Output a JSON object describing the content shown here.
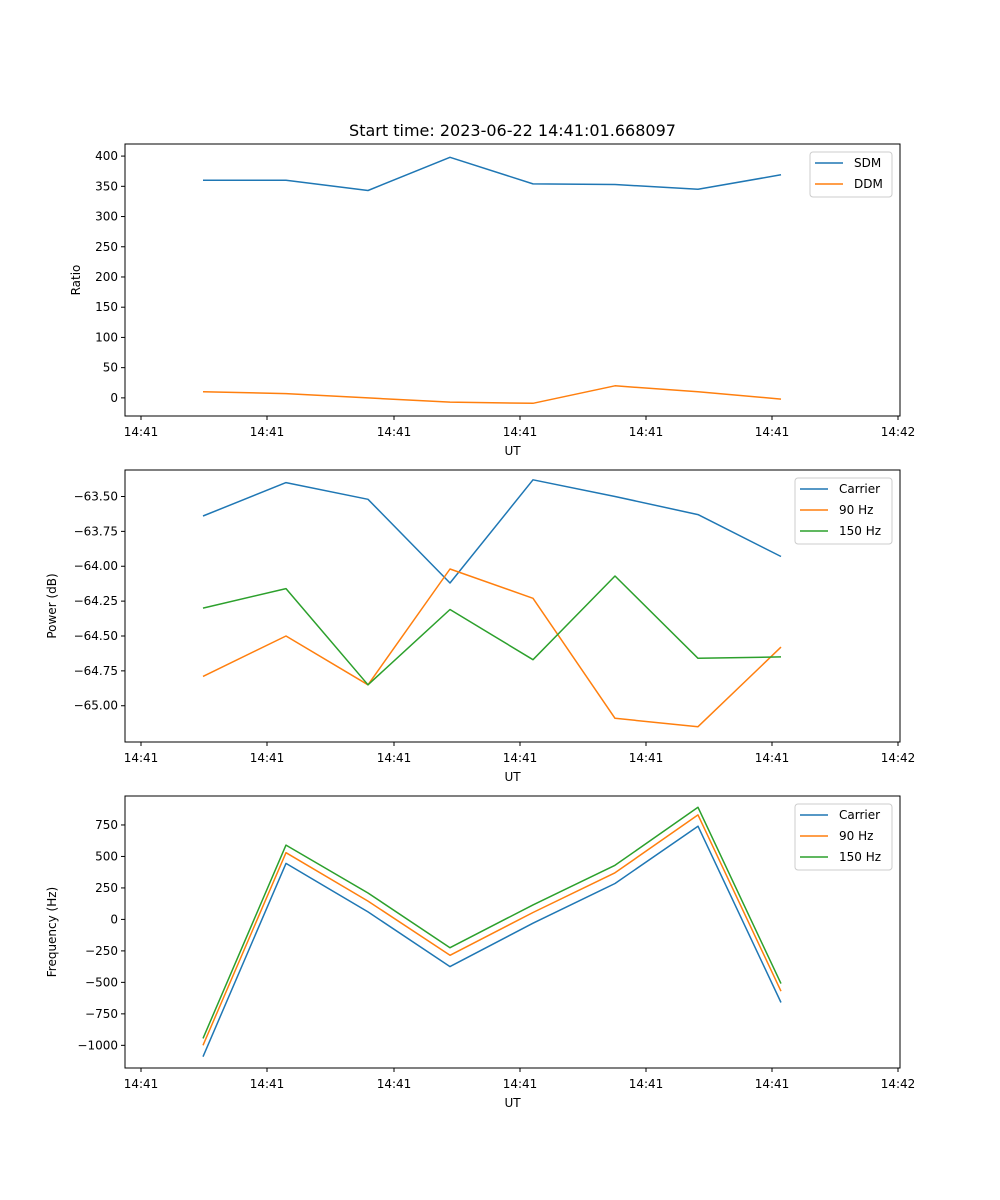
{
  "chart_data": [
    {
      "type": "line",
      "title": "Start time: 2023-06-22 14:41:01.668097",
      "xlabel": "UT",
      "ylabel": "Ratio",
      "x_tick_labels": [
        "14:41",
        "14:41",
        "14:41",
        "14:41",
        "14:41",
        "14:41",
        "14:42"
      ],
      "y_ticks": [
        0,
        50,
        100,
        150,
        200,
        250,
        300,
        350,
        400
      ],
      "y_tick_labels": [
        "0",
        "50",
        "100",
        "150",
        "200",
        "250",
        "300",
        "350",
        "400"
      ],
      "ylim": [
        -30,
        420
      ],
      "legend": "top-right",
      "series": [
        {
          "name": "SDM",
          "color": "#1f77b4",
          "values": [
            360,
            360,
            343,
            398,
            354,
            353,
            345,
            369
          ]
        },
        {
          "name": "DDM",
          "color": "#ff7f0e",
          "values": [
            10,
            7,
            0,
            -7,
            -9,
            20,
            10,
            -2
          ]
        }
      ]
    },
    {
      "type": "line",
      "title": "",
      "xlabel": "UT",
      "ylabel": "Power (dB)",
      "x_tick_labels": [
        "14:41",
        "14:41",
        "14:41",
        "14:41",
        "14:41",
        "14:41",
        "14:42"
      ],
      "y_ticks": [
        -65.0,
        -64.75,
        -64.5,
        -64.25,
        -64.0,
        -63.75,
        -63.5
      ],
      "y_tick_labels": [
        "−65.00",
        "−64.75",
        "−64.50",
        "−64.25",
        "−64.00",
        "−63.75",
        "−63.50"
      ],
      "ylim": [
        -65.26,
        -63.31
      ],
      "legend": "top-right",
      "series": [
        {
          "name": "Carrier",
          "color": "#1f77b4",
          "values": [
            -63.64,
            -63.4,
            -63.52,
            -64.12,
            -63.38,
            -63.5,
            -63.63,
            -63.93
          ]
        },
        {
          "name": "90 Hz",
          "color": "#ff7f0e",
          "values": [
            -64.79,
            -64.5,
            -64.85,
            -64.02,
            -64.23,
            -65.09,
            -65.15,
            -64.58
          ]
        },
        {
          "name": "150 Hz",
          "color": "#2ca02c",
          "values": [
            -64.3,
            -64.16,
            -64.85,
            -64.31,
            -64.67,
            -64.07,
            -64.66,
            -64.65
          ]
        }
      ]
    },
    {
      "type": "line",
      "title": "",
      "xlabel": "UT",
      "ylabel": "Frequency (Hz)",
      "x_tick_labels": [
        "14:41",
        "14:41",
        "14:41",
        "14:41",
        "14:41",
        "14:41",
        "14:42"
      ],
      "y_ticks": [
        -1000,
        -750,
        -500,
        -250,
        0,
        250,
        500,
        750
      ],
      "y_tick_labels": [
        "−1000",
        "−750",
        "−500",
        "−250",
        "0",
        "250",
        "500",
        "750"
      ],
      "ylim": [
        -1180,
        980
      ],
      "legend": "top-right",
      "series": [
        {
          "name": "Carrier",
          "color": "#1f77b4",
          "values": [
            -1090,
            445,
            60,
            -375,
            -30,
            285,
            740,
            -660
          ]
        },
        {
          "name": "90 Hz",
          "color": "#ff7f0e",
          "values": [
            -1000,
            530,
            145,
            -285,
            55,
            370,
            830,
            -570
          ]
        },
        {
          "name": "150 Hz",
          "color": "#2ca02c",
          "values": [
            -945,
            590,
            210,
            -225,
            115,
            430,
            890,
            -510
          ]
        }
      ]
    }
  ]
}
